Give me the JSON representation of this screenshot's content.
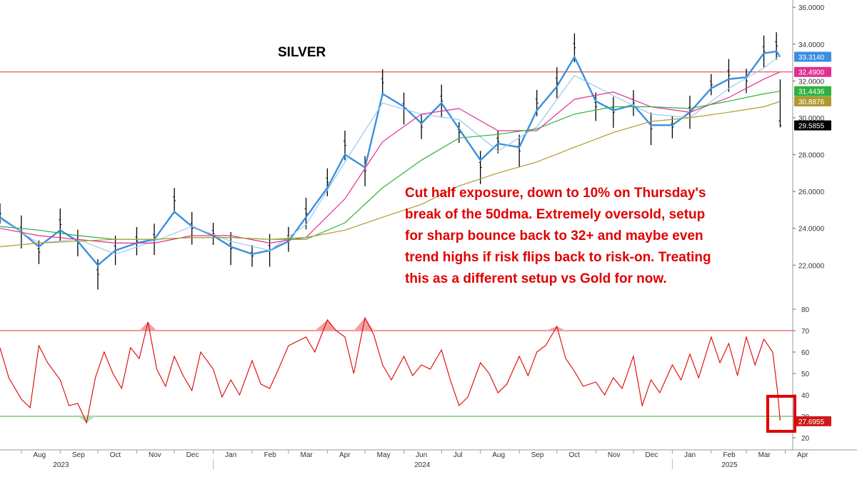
{
  "chart_data": [
    {
      "type": "line",
      "subtype": "candlestick-with-moving-averages",
      "title": "SILVER",
      "annotation": [
        "Cut half exposure, down to 10% on Thursday's",
        "break of the 50dma. Extremely oversold, setup",
        "for sharp bounce back to 32+ and maybe even",
        "trend highs if risk flips back to risk-on. Treating",
        "this as a different setup vs Gold for now."
      ],
      "ylim": [
        20.5,
        36.2
      ],
      "y_ticks": [
        "22.0000",
        "24.0000",
        "26.0000",
        "28.0000",
        "30.0000",
        "32.0000",
        "34.0000",
        "36.0000"
      ],
      "y_tick_values": [
        22,
        24,
        26,
        28,
        30,
        32,
        34,
        36
      ],
      "grid": false,
      "resistance_line": 32.49,
      "last_value_tags": [
        {
          "label": "33.3140",
          "value": 33.314,
          "color": "#3a8fe0"
        },
        {
          "label": "32.4900",
          "value": 32.49,
          "color": "#e0308f"
        },
        {
          "label": "31.4436",
          "value": 31.4436,
          "color": "#30b040"
        },
        {
          "label": "30.8876",
          "value": 30.8876,
          "color": "#b09a30"
        },
        {
          "label": "29.5855",
          "value": 29.5855,
          "color": "#000000"
        }
      ],
      "series": [
        {
          "color": "#000000",
          "style": "bars",
          "x": [
            "2023-07-15",
            "2023-08-01",
            "2023-08-15",
            "2023-09-01",
            "2023-09-15",
            "2023-10-01",
            "2023-10-15",
            "2023-11-01",
            "2023-11-15",
            "2023-12-01",
            "2023-12-15",
            "2024-01-01",
            "2024-01-15",
            "2024-02-01",
            "2024-02-15",
            "2024-03-01",
            "2024-03-15",
            "2024-04-01",
            "2024-04-15",
            "2024-05-01",
            "2024-05-15",
            "2024-06-01",
            "2024-06-15",
            "2024-07-01",
            "2024-07-15",
            "2024-08-01",
            "2024-08-15",
            "2024-09-01",
            "2024-09-15",
            "2024-10-01",
            "2024-10-15",
            "2024-11-01",
            "2024-11-15",
            "2024-12-01",
            "2024-12-15",
            "2025-01-01",
            "2025-01-15",
            "2025-02-01",
            "2025-02-15",
            "2025-03-01",
            "2025-03-15",
            "2025-03-25",
            "2025-03-28"
          ],
          "values": [
            24.8,
            23.8,
            22.7,
            24.2,
            23.2,
            21.5,
            22.8,
            23.3,
            23.4,
            25.5,
            24.0,
            23.7,
            22.9,
            22.5,
            22.8,
            23.4,
            24.8,
            26.5,
            28.5,
            27.1,
            31.9,
            30.5,
            29.5,
            30.9,
            29.2,
            27.3,
            28.7,
            28.2,
            30.8,
            31.9,
            33.8,
            30.6,
            30.3,
            30.8,
            29.4,
            29.5,
            30.3,
            31.8,
            32.3,
            32.0,
            33.6,
            33.9,
            29.58
          ]
        },
        {
          "color": "#3a8fe0",
          "style": "thick-line",
          "x": [
            "2023-07-15",
            "2023-08-01",
            "2023-08-15",
            "2023-09-01",
            "2023-09-15",
            "2023-10-01",
            "2023-10-15",
            "2023-11-01",
            "2023-11-15",
            "2023-12-01",
            "2023-12-15",
            "2024-01-01",
            "2024-01-15",
            "2024-02-01",
            "2024-02-15",
            "2024-03-01",
            "2024-03-15",
            "2024-04-01",
            "2024-04-15",
            "2024-05-01",
            "2024-05-15",
            "2024-06-01",
            "2024-06-15",
            "2024-07-01",
            "2024-07-15",
            "2024-08-01",
            "2024-08-15",
            "2024-09-01",
            "2024-09-15",
            "2024-10-01",
            "2024-10-15",
            "2024-11-01",
            "2024-11-15",
            "2024-12-01",
            "2024-12-15",
            "2025-01-01",
            "2025-01-15",
            "2025-02-01",
            "2025-02-15",
            "2025-03-01",
            "2025-03-15",
            "2025-03-25",
            "2025-03-28"
          ],
          "values": [
            24.6,
            23.8,
            23.0,
            23.9,
            23.3,
            22.0,
            22.8,
            23.2,
            23.4,
            24.9,
            24.1,
            23.6,
            23.0,
            22.6,
            22.8,
            23.3,
            24.6,
            26.2,
            28.0,
            27.3,
            31.3,
            30.6,
            29.7,
            30.8,
            29.4,
            27.7,
            28.6,
            28.4,
            30.4,
            31.7,
            33.3,
            30.9,
            30.4,
            30.7,
            29.6,
            29.6,
            30.3,
            31.6,
            32.1,
            32.2,
            33.5,
            33.6,
            33.31
          ]
        },
        {
          "color": "#9ac8ee",
          "style": "line",
          "x": [
            "2023-07-15",
            "2023-08-15",
            "2023-09-15",
            "2023-10-15",
            "2023-11-15",
            "2023-12-15",
            "2024-01-15",
            "2024-02-15",
            "2024-03-15",
            "2024-04-15",
            "2024-05-15",
            "2024-06-15",
            "2024-07-15",
            "2024-08-15",
            "2024-09-15",
            "2024-10-15",
            "2024-11-15",
            "2024-12-15",
            "2025-01-15",
            "2025-02-15",
            "2025-03-15",
            "2025-03-28"
          ],
          "values": [
            24.5,
            23.2,
            23.4,
            22.6,
            23.3,
            24.1,
            23.3,
            22.8,
            24.2,
            27.6,
            30.8,
            30.2,
            29.9,
            28.2,
            29.5,
            32.3,
            31.2,
            30.2,
            30.0,
            31.6,
            32.7,
            33.4
          ]
        },
        {
          "color": "#e0308f",
          "style": "line",
          "x": [
            "2023-07-15",
            "2023-08-15",
            "2023-09-15",
            "2023-10-15",
            "2023-11-15",
            "2023-12-15",
            "2024-01-15",
            "2024-02-15",
            "2024-03-15",
            "2024-04-15",
            "2024-05-15",
            "2024-06-15",
            "2024-07-15",
            "2024-08-15",
            "2024-09-15",
            "2024-10-15",
            "2024-11-15",
            "2024-12-15",
            "2025-01-15",
            "2025-02-15",
            "2025-03-15",
            "2025-03-28"
          ],
          "values": [
            24.0,
            23.6,
            23.4,
            23.2,
            23.2,
            23.6,
            23.6,
            23.2,
            23.5,
            25.6,
            28.7,
            30.2,
            30.5,
            29.3,
            29.3,
            31.0,
            31.4,
            30.6,
            30.3,
            31.1,
            32.1,
            32.49
          ]
        },
        {
          "color": "#30b040",
          "style": "line",
          "x": [
            "2023-07-15",
            "2023-08-15",
            "2023-09-15",
            "2023-10-15",
            "2023-11-15",
            "2023-12-15",
            "2024-01-15",
            "2024-02-15",
            "2024-03-15",
            "2024-04-15",
            "2024-05-15",
            "2024-06-15",
            "2024-07-15",
            "2024-08-15",
            "2024-09-15",
            "2024-10-15",
            "2024-11-15",
            "2024-12-15",
            "2025-01-15",
            "2025-02-15",
            "2025-03-15",
            "2025-03-28"
          ],
          "values": [
            24.1,
            23.9,
            23.6,
            23.4,
            23.4,
            23.5,
            23.5,
            23.4,
            23.4,
            24.3,
            26.2,
            27.7,
            28.9,
            29.1,
            29.4,
            30.2,
            30.6,
            30.6,
            30.5,
            30.9,
            31.3,
            31.44
          ]
        },
        {
          "color": "#b09a30",
          "style": "line",
          "x": [
            "2023-07-15",
            "2023-08-15",
            "2023-09-15",
            "2023-10-15",
            "2023-11-15",
            "2023-12-15",
            "2024-01-15",
            "2024-02-15",
            "2024-03-15",
            "2024-04-15",
            "2024-05-15",
            "2024-06-15",
            "2024-07-15",
            "2024-08-15",
            "2024-09-15",
            "2024-10-15",
            "2024-11-15",
            "2024-12-15",
            "2025-01-15",
            "2025-02-15",
            "2025-03-15",
            "2025-03-28"
          ],
          "values": [
            23.0,
            23.2,
            23.3,
            23.4,
            23.4,
            23.5,
            23.5,
            23.4,
            23.5,
            23.9,
            24.6,
            25.3,
            26.3,
            27.0,
            27.6,
            28.4,
            29.2,
            29.8,
            30.0,
            30.3,
            30.6,
            30.89
          ]
        }
      ]
    },
    {
      "type": "line",
      "subtype": "RSI",
      "ylim": [
        15,
        85
      ],
      "y_ticks": [
        "20",
        "30",
        "40",
        "50",
        "60",
        "70",
        "80"
      ],
      "y_tick_values": [
        20,
        30,
        40,
        50,
        60,
        70,
        80
      ],
      "overbought": 70,
      "oversold": 30,
      "last_value_tag": {
        "label": "27.6955",
        "value": 27.6955
      },
      "series": [
        {
          "color": "#e00000",
          "x": [
            "2023-07-15",
            "2023-07-22",
            "2023-08-01",
            "2023-08-08",
            "2023-08-15",
            "2023-08-22",
            "2023-09-01",
            "2023-09-08",
            "2023-09-15",
            "2023-09-22",
            "2023-09-29",
            "2023-10-06",
            "2023-10-13",
            "2023-10-20",
            "2023-10-27",
            "2023-11-03",
            "2023-11-10",
            "2023-11-17",
            "2023-11-24",
            "2023-12-01",
            "2023-12-08",
            "2023-12-15",
            "2023-12-22",
            "2024-01-01",
            "2024-01-08",
            "2024-01-15",
            "2024-01-22",
            "2024-02-01",
            "2024-02-08",
            "2024-02-15",
            "2024-02-22",
            "2024-03-01",
            "2024-03-08",
            "2024-03-15",
            "2024-03-22",
            "2024-04-01",
            "2024-04-08",
            "2024-04-15",
            "2024-04-22",
            "2024-05-01",
            "2024-05-08",
            "2024-05-15",
            "2024-05-22",
            "2024-06-01",
            "2024-06-08",
            "2024-06-15",
            "2024-06-22",
            "2024-07-01",
            "2024-07-08",
            "2024-07-15",
            "2024-07-22",
            "2024-08-01",
            "2024-08-08",
            "2024-08-15",
            "2024-08-22",
            "2024-09-01",
            "2024-09-08",
            "2024-09-15",
            "2024-09-22",
            "2024-10-01",
            "2024-10-08",
            "2024-10-15",
            "2024-10-22",
            "2024-11-01",
            "2024-11-08",
            "2024-11-15",
            "2024-11-22",
            "2024-12-01",
            "2024-12-08",
            "2024-12-15",
            "2024-12-22",
            "2025-01-01",
            "2025-01-08",
            "2025-01-15",
            "2025-01-22",
            "2025-02-01",
            "2025-02-08",
            "2025-02-15",
            "2025-02-22",
            "2025-03-01",
            "2025-03-08",
            "2025-03-15",
            "2025-03-22",
            "2025-03-26",
            "2025-03-28"
          ],
          "values": [
            62,
            48,
            38,
            34,
            63,
            55,
            47,
            35,
            36,
            27,
            48,
            60,
            50,
            43,
            62,
            57,
            74,
            52,
            44,
            58,
            49,
            42,
            60,
            52,
            39,
            47,
            40,
            56,
            45,
            43,
            52,
            63,
            65,
            67,
            60,
            75,
            70,
            67,
            50,
            76,
            68,
            54,
            47,
            58,
            49,
            54,
            52,
            61,
            47,
            35,
            39,
            55,
            50,
            41,
            45,
            58,
            49,
            60,
            63,
            72,
            57,
            51,
            44,
            46,
            40,
            48,
            43,
            58,
            35,
            47,
            41,
            54,
            47,
            59,
            48,
            67,
            55,
            64,
            49,
            67,
            54,
            66,
            60,
            41,
            28
          ]
        }
      ]
    }
  ],
  "x_axis": {
    "months": [
      "Aug",
      "Sep",
      "Oct",
      "Nov",
      "Dec",
      "Jan",
      "Feb",
      "Mar",
      "Apr",
      "May",
      "Jun",
      "Jul",
      "Aug",
      "Sep",
      "Oct",
      "Nov",
      "Dec",
      "Jan",
      "Feb",
      "Mar",
      "Apr"
    ],
    "years": [
      "2023",
      "2024",
      "2025"
    ]
  }
}
